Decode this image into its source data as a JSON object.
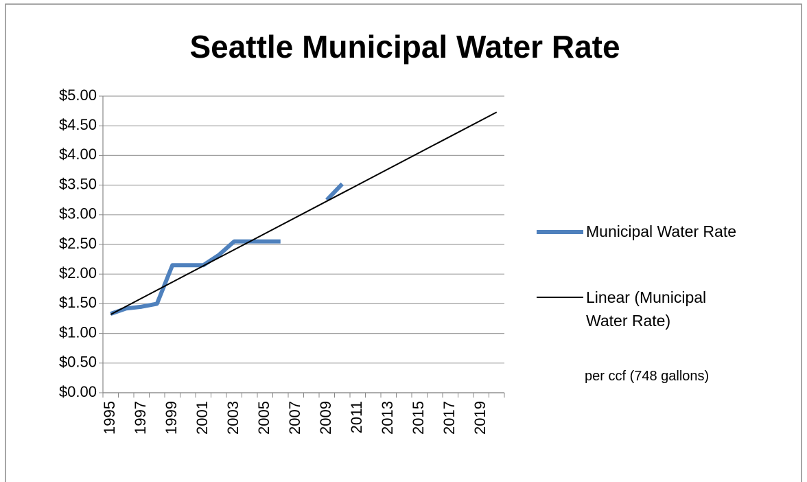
{
  "chart_data": {
    "type": "line",
    "title": "Seattle Municipal Water Rate",
    "categories": [
      "1995",
      null,
      "1997",
      null,
      "1999",
      null,
      "2001",
      null,
      "2003",
      null,
      "2005",
      null,
      "2007",
      null,
      "2009",
      null,
      "2011",
      null,
      "2013",
      null,
      "2015",
      null,
      "2017",
      null,
      "2019",
      null
    ],
    "series": [
      {
        "name": "Municipal Water Rate",
        "color": "#4f81bd",
        "values": [
          1.33,
          1.42,
          1.45,
          1.5,
          2.15,
          2.15,
          2.15,
          2.32,
          2.55,
          2.55,
          2.55,
          2.55,
          null,
          null,
          3.25,
          3.52,
          null,
          null,
          null,
          null,
          null,
          null,
          null,
          null,
          null,
          null
        ]
      }
    ],
    "trendline": {
      "name": "Linear (Municipal Water Rate)",
      "color": "#000000",
      "start": 1.32,
      "end": 4.73
    },
    "annotation": "per ccf (748 gallons)",
    "ylim": [
      0,
      5
    ],
    "yticks": [
      {
        "value": 0,
        "label": "$0.00"
      },
      {
        "value": 0.5,
        "label": "$0.50"
      },
      {
        "value": 1,
        "label": "$1.00"
      },
      {
        "value": 1.5,
        "label": "$1.50"
      },
      {
        "value": 2,
        "label": "$2.00"
      },
      {
        "value": 2.5,
        "label": "$2.50"
      },
      {
        "value": 3,
        "label": "$3.00"
      },
      {
        "value": 3.5,
        "label": "$3.50"
      },
      {
        "value": 4,
        "label": "$4.00"
      },
      {
        "value": 4.5,
        "label": "$4.50"
      },
      {
        "value": 5,
        "label": "$5.00"
      }
    ],
    "grid": true
  }
}
